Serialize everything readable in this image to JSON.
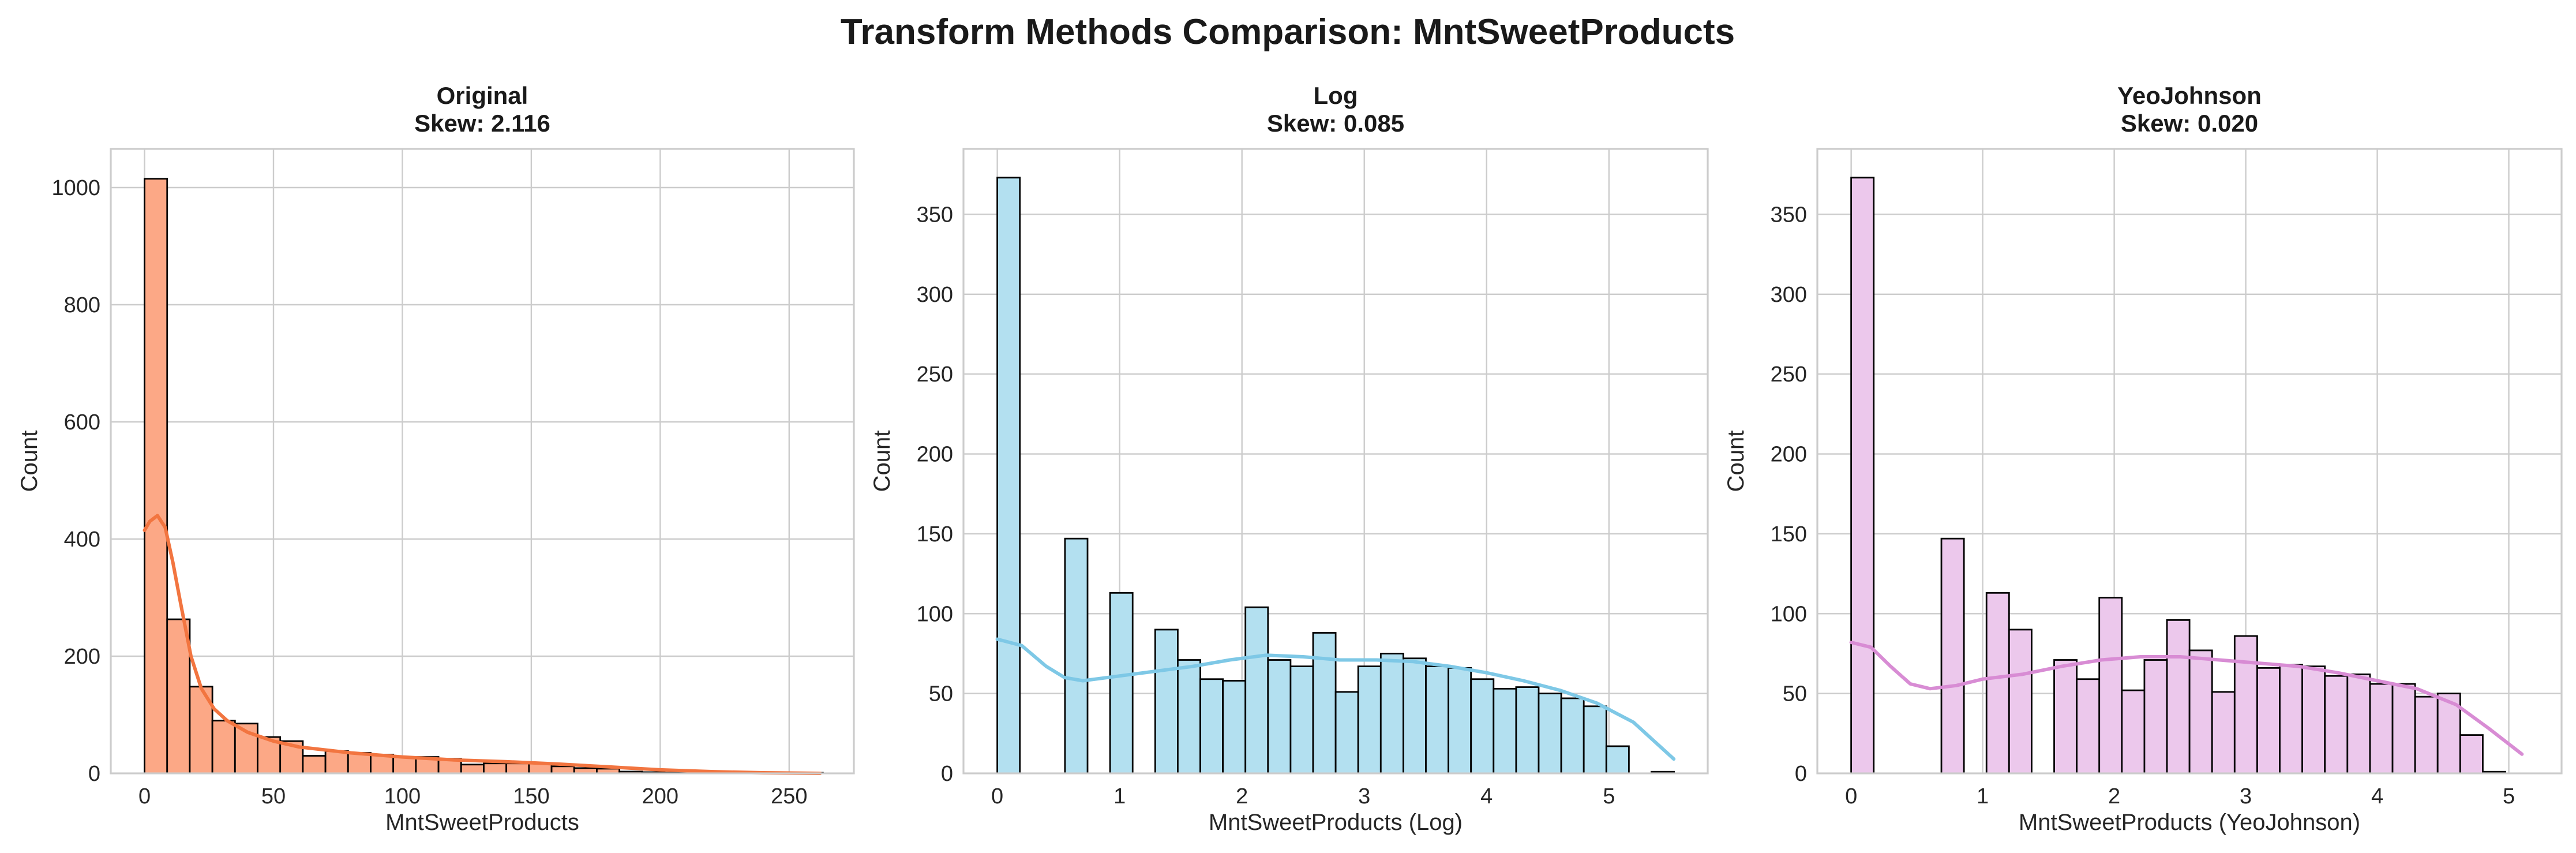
{
  "title": "Transform Methods Comparison: MntSweetProducts",
  "chart_data": [
    {
      "type": "histogram",
      "title": "Original",
      "subtitle": "Skew: 2.116",
      "xlabel": "MntSweetProducts",
      "ylabel": "Count",
      "color": "#fca886",
      "kde_color": "#f27540",
      "xlim": [
        -13.1,
        275.1
      ],
      "ylim": [
        0,
        1066
      ],
      "xticks": [
        0,
        50,
        100,
        150,
        200,
        250
      ],
      "yticks": [
        0,
        200,
        400,
        600,
        800,
        1000
      ],
      "bin_start": 0,
      "bin_width": 8.77,
      "counts": [
        1015,
        263,
        148,
        90,
        85,
        62,
        55,
        30,
        38,
        35,
        32,
        28,
        28,
        25,
        15,
        17,
        17,
        17,
        12,
        9,
        8,
        3,
        2,
        1,
        1,
        1,
        1,
        1,
        1,
        1
      ],
      "kde": [
        [
          0,
          415
        ],
        [
          2,
          430
        ],
        [
          5,
          440
        ],
        [
          8,
          420
        ],
        [
          11,
          360
        ],
        [
          14,
          290
        ],
        [
          18,
          200
        ],
        [
          22,
          145
        ],
        [
          27,
          110
        ],
        [
          32,
          90
        ],
        [
          40,
          70
        ],
        [
          50,
          55
        ],
        [
          60,
          45
        ],
        [
          80,
          35
        ],
        [
          100,
          28
        ],
        [
          120,
          23
        ],
        [
          140,
          20
        ],
        [
          160,
          16
        ],
        [
          180,
          11
        ],
        [
          200,
          6
        ],
        [
          220,
          3
        ],
        [
          240,
          1
        ],
        [
          262,
          0
        ]
      ],
      "grid": true
    },
    {
      "type": "histogram",
      "title": "Log",
      "subtitle": "Skew: 0.085",
      "xlabel": "MntSweetProducts (Log)",
      "ylabel": "Count",
      "color": "#b3e0f0",
      "kde_color": "#7ec8e6",
      "xlim": [
        -0.2765,
        5.8075
      ],
      "ylim": [
        0,
        391
      ],
      "xticks": [
        0,
        1,
        2,
        3,
        4,
        5
      ],
      "yticks": [
        0,
        50,
        100,
        150,
        200,
        250,
        300,
        350
      ],
      "bin_start": 0,
      "bin_width": 0.1844,
      "counts": [
        373,
        0,
        0,
        147,
        0,
        113,
        0,
        90,
        71,
        59,
        58,
        104,
        71,
        67,
        88,
        51,
        67,
        75,
        72,
        67,
        66,
        59,
        53,
        54,
        50,
        47,
        42,
        17,
        0,
        1
      ],
      "kde": [
        [
          0,
          84
        ],
        [
          0.2,
          80
        ],
        [
          0.4,
          67
        ],
        [
          0.55,
          60
        ],
        [
          0.7,
          58
        ],
        [
          1.0,
          61
        ],
        [
          1.3,
          64
        ],
        [
          1.6,
          67
        ],
        [
          1.9,
          71
        ],
        [
          2.2,
          74
        ],
        [
          2.5,
          73
        ],
        [
          2.8,
          71
        ],
        [
          3.1,
          71
        ],
        [
          3.4,
          70
        ],
        [
          3.7,
          67
        ],
        [
          4.0,
          63
        ],
        [
          4.3,
          58
        ],
        [
          4.6,
          52
        ],
        [
          4.9,
          44
        ],
        [
          5.2,
          32
        ],
        [
          5.53,
          9
        ]
      ],
      "grid": true
    },
    {
      "type": "histogram",
      "title": "YeoJohnson",
      "subtitle": "Skew: 0.020",
      "xlabel": "MntSweetProducts (YeoJohnson)",
      "ylabel": "Count",
      "color": "#ecc8ec",
      "kde_color": "#d88cd4",
      "xlim": [
        -0.2572,
        5.4012
      ],
      "ylim": [
        0,
        391
      ],
      "xticks": [
        0,
        1,
        2,
        3,
        4,
        5
      ],
      "yticks": [
        0,
        50,
        100,
        150,
        200,
        250,
        300,
        350
      ],
      "bin_start": 0,
      "bin_width": 0.1715,
      "counts": [
        373,
        0,
        0,
        0,
        147,
        0,
        113,
        90,
        0,
        71,
        59,
        110,
        52,
        71,
        96,
        77,
        51,
        86,
        66,
        68,
        67,
        61,
        62,
        56,
        56,
        48,
        50,
        24,
        1,
        0
      ],
      "kde": [
        [
          0,
          82
        ],
        [
          0.15,
          79
        ],
        [
          0.3,
          67
        ],
        [
          0.45,
          56
        ],
        [
          0.6,
          53
        ],
        [
          0.8,
          55
        ],
        [
          1.0,
          59
        ],
        [
          1.3,
          62
        ],
        [
          1.6,
          67
        ],
        [
          1.9,
          71
        ],
        [
          2.2,
          73
        ],
        [
          2.5,
          73
        ],
        [
          2.8,
          71
        ],
        [
          3.1,
          69
        ],
        [
          3.4,
          67
        ],
        [
          3.7,
          63
        ],
        [
          4.0,
          58
        ],
        [
          4.3,
          53
        ],
        [
          4.6,
          43
        ],
        [
          4.85,
          28
        ],
        [
          5.1,
          12
        ]
      ],
      "grid": true
    }
  ]
}
